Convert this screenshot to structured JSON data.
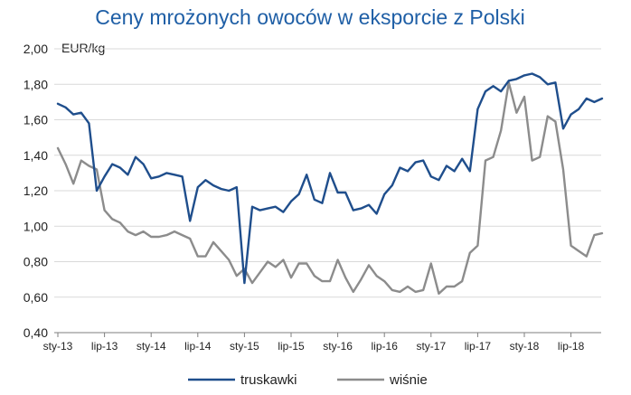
{
  "chart_data": {
    "type": "line",
    "title": "Ceny mrożonych owoców w eksporcie z Polski",
    "ylabel": "EUR/kg",
    "xlabel": "",
    "ylim": [
      0.4,
      2.0
    ],
    "yticks": [
      "2,00",
      "1,80",
      "1,60",
      "1,40",
      "1,20",
      "1,00",
      "0,80",
      "0,60",
      "0,40"
    ],
    "xtick_labels": [
      "sty-13",
      "lip-13",
      "sty-14",
      "lip-14",
      "sty-15",
      "lip-15",
      "sty-16",
      "lip-16",
      "sty-17",
      "lip-17",
      "sty-18",
      "lip-18"
    ],
    "grid": true,
    "legend_position": "bottom",
    "colors": {
      "truskawki": "#1f4e8c",
      "wisnie": "#8c8c8c",
      "title": "#1f5fa6"
    },
    "series": [
      {
        "name": "truskawki",
        "values": [
          1.69,
          1.67,
          1.63,
          1.64,
          1.58,
          1.2,
          1.28,
          1.35,
          1.33,
          1.29,
          1.39,
          1.35,
          1.27,
          1.28,
          1.3,
          1.29,
          1.28,
          1.03,
          1.22,
          1.26,
          1.23,
          1.21,
          1.2,
          1.22,
          0.68,
          1.11,
          1.09,
          1.1,
          1.11,
          1.08,
          1.14,
          1.18,
          1.29,
          1.15,
          1.13,
          1.3,
          1.19,
          1.19,
          1.09,
          1.1,
          1.12,
          1.07,
          1.18,
          1.23,
          1.33,
          1.31,
          1.36,
          1.37,
          1.28,
          1.26,
          1.34,
          1.31,
          1.38,
          1.31,
          1.66,
          1.76,
          1.79,
          1.76,
          1.82,
          1.83,
          1.85,
          1.86,
          1.84,
          1.8,
          1.81,
          1.55,
          1.63,
          1.66,
          1.72,
          1.7,
          1.72
        ]
      },
      {
        "name": "wiśnie",
        "values": [
          1.44,
          1.35,
          1.24,
          1.37,
          1.34,
          1.32,
          1.09,
          1.04,
          1.02,
          0.97,
          0.95,
          0.97,
          0.94,
          0.94,
          0.95,
          0.97,
          0.95,
          0.93,
          0.83,
          0.83,
          0.91,
          0.86,
          0.81,
          0.72,
          0.76,
          0.68,
          0.74,
          0.8,
          0.77,
          0.81,
          0.71,
          0.79,
          0.79,
          0.72,
          0.69,
          0.69,
          0.81,
          0.71,
          0.63,
          0.7,
          0.78,
          0.72,
          0.69,
          0.64,
          0.63,
          0.66,
          0.63,
          0.64,
          0.79,
          0.62,
          0.66,
          0.66,
          0.69,
          0.85,
          0.89,
          1.37,
          1.39,
          1.54,
          1.81,
          1.64,
          1.73,
          1.37,
          1.39,
          1.62,
          1.59,
          1.32,
          0.89,
          0.86,
          0.83,
          0.95,
          0.96
        ]
      }
    ]
  }
}
